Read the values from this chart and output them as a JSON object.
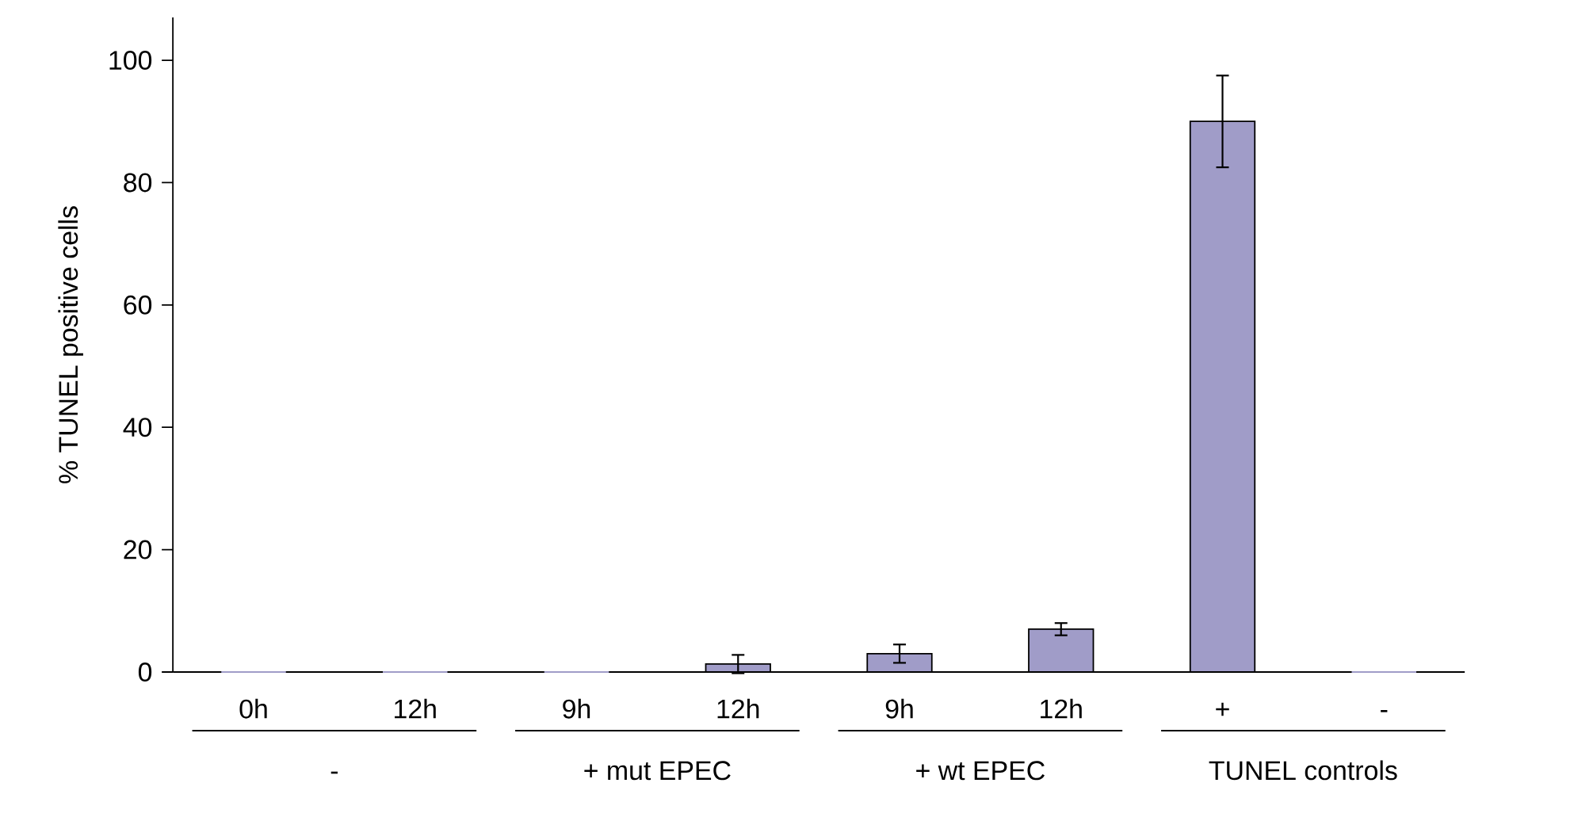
{
  "chart_data": {
    "type": "bar",
    "ylabel": "% TUNEL positive cells",
    "categories": [
      "0h",
      "12h",
      "9h",
      "12h",
      "9h",
      "12h",
      "+",
      "-"
    ],
    "values": [
      0,
      0,
      0,
      1.3,
      3,
      7,
      90,
      0
    ],
    "errors": [
      null,
      null,
      null,
      1.5,
      1.5,
      1,
      7.5,
      null
    ],
    "color": "#a09cc8",
    "ylim": [
      0,
      107
    ],
    "yticks": [
      0,
      20,
      40,
      60,
      80,
      100
    ],
    "annotations": [
      "-",
      "+ mut EPEC",
      "+ wt EPEC",
      "TUNEL controls"
    ]
  }
}
